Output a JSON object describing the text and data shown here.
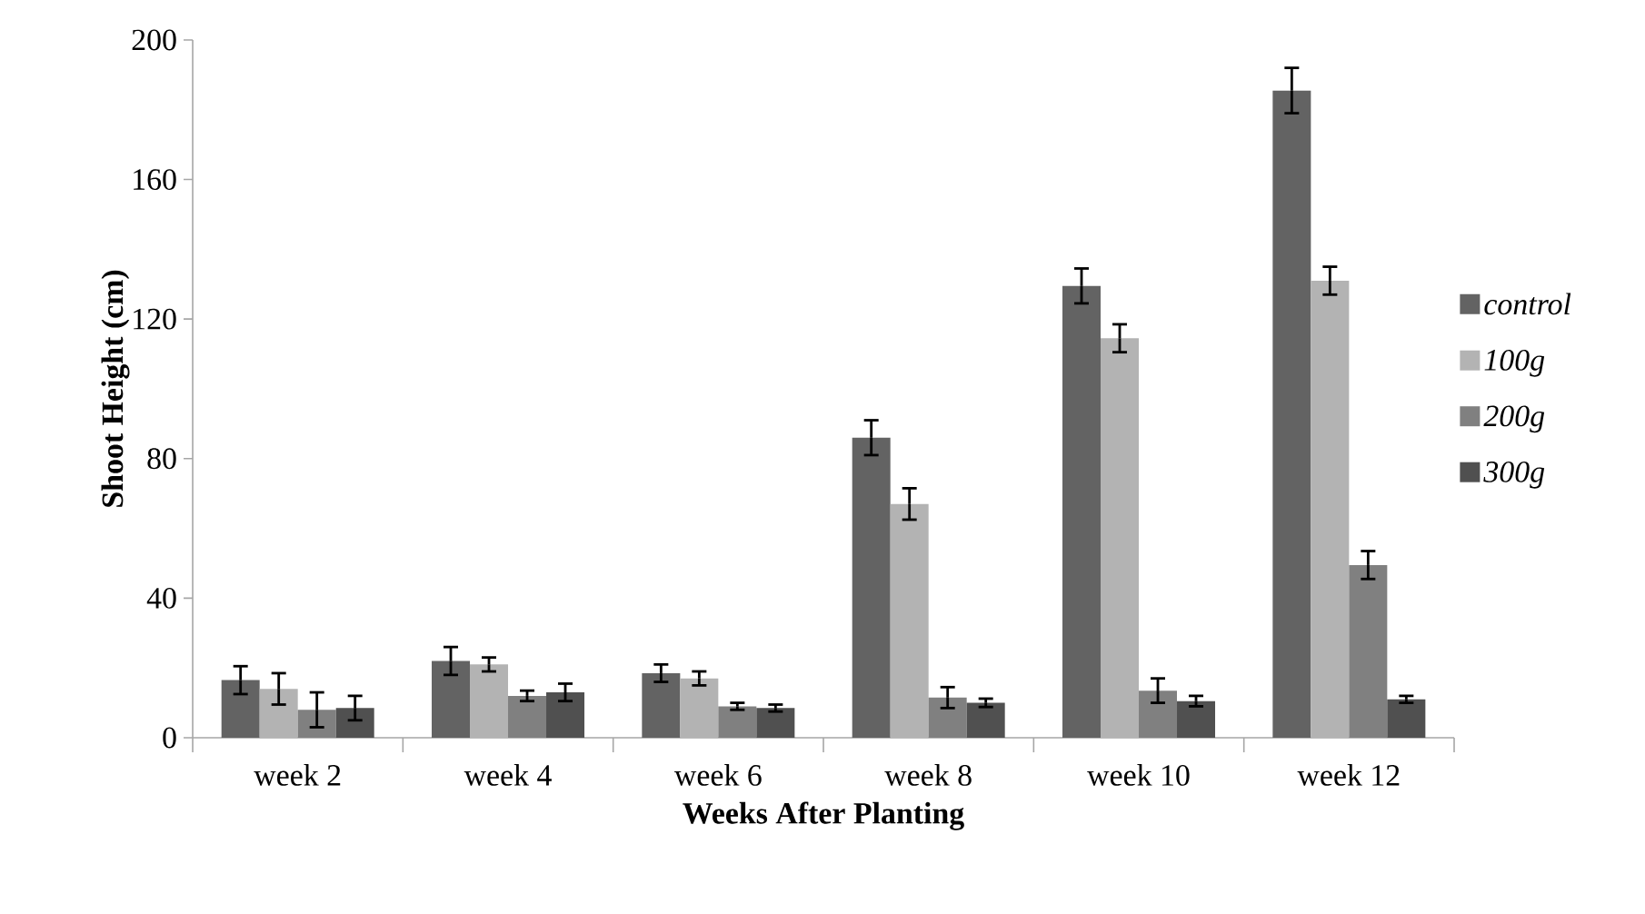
{
  "chart_data": {
    "type": "bar",
    "xlabel": "Weeks After Planting",
    "ylabel": "Shoot Height (cm)",
    "categories": [
      "week 2",
      "week 4",
      "week 6",
      "week 8",
      "week 10",
      "week 12"
    ],
    "series": [
      {
        "name": "control",
        "color": "#636363",
        "values": [
          16.5,
          22,
          18.5,
          86,
          129.5,
          185.5
        ],
        "errors": [
          4,
          4,
          2.5,
          5,
          5,
          6.5
        ]
      },
      {
        "name": "100g",
        "color": "#b3b3b3",
        "values": [
          14,
          21,
          17,
          67,
          114.5,
          131
        ],
        "errors": [
          4.5,
          2,
          2,
          4.5,
          4,
          4
        ]
      },
      {
        "name": "200g",
        "color": "#808080",
        "values": [
          8,
          12,
          9,
          11.5,
          13.5,
          49.5
        ],
        "errors": [
          5,
          1.5,
          1,
          3,
          3.5,
          4
        ]
      },
      {
        "name": "300g",
        "color": "#505050",
        "values": [
          8.5,
          13,
          8.5,
          10,
          10.5,
          11
        ],
        "errors": [
          3.5,
          2.5,
          1,
          1.2,
          1.5,
          1
        ]
      }
    ],
    "ylim": [
      0,
      200
    ],
    "yticks": [
      0,
      40,
      80,
      120,
      160,
      200
    ],
    "legend": "right",
    "grid": false
  }
}
